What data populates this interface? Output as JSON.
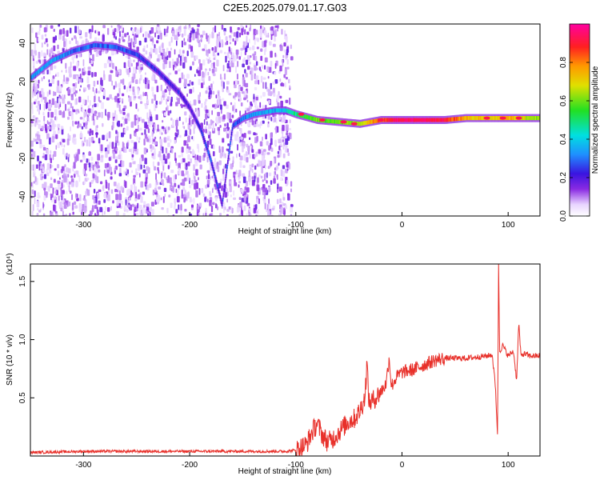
{
  "title": "C2E5.2025.079.01.17.G03",
  "chart_data": [
    {
      "type": "heatmap",
      "name": "spectrogram",
      "xlabel": "Height of straight line (km)",
      "ylabel": "Frequency (Hz)",
      "xlim": [
        -350,
        130
      ],
      "ylim": [
        -50,
        50
      ],
      "xticks": [
        -300,
        -200,
        -100,
        0,
        100
      ],
      "yticks": [
        -40,
        -20,
        0,
        20,
        40
      ],
      "colorbar": {
        "label": "Normalized spectral amplitude",
        "range": [
          0,
          1
        ],
        "ticks": [
          "0.0",
          "0.2",
          "0.4",
          "0.6",
          "0.8"
        ],
        "tick_values": [
          0.0,
          0.2,
          0.4,
          0.6,
          0.8
        ]
      },
      "noise_region_x": [
        -350,
        -105
      ],
      "ridge": {
        "x": [
          -350,
          -330,
          -310,
          -290,
          -270,
          -250,
          -230,
          -210,
          -200,
          -190,
          -180,
          -170,
          -160,
          -150,
          -140,
          -130,
          -120,
          -110,
          -100,
          -80,
          -60,
          -40,
          -20,
          0,
          20,
          40,
          60,
          80,
          100,
          130
        ],
        "y": [
          22,
          31,
          36,
          39,
          38,
          34,
          25,
          14,
          6,
          -5,
          -22,
          -44,
          -3,
          1,
          3,
          4,
          5,
          5,
          3,
          0,
          -1,
          -2,
          0,
          0,
          0,
          0,
          1,
          1,
          1,
          1
        ],
        "amplitude": [
          0.3,
          0.35,
          0.3,
          0.28,
          0.28,
          0.25,
          0.22,
          0.2,
          0.2,
          0.22,
          0.25,
          0.2,
          0.25,
          0.3,
          0.35,
          0.35,
          0.35,
          0.4,
          0.5,
          0.6,
          0.6,
          0.65,
          0.85,
          0.95,
          0.95,
          0.9,
          0.75,
          0.7,
          0.75,
          0.6
        ]
      }
    },
    {
      "type": "line",
      "name": "snr",
      "xlabel": "Height of straight line (km)",
      "ylabel": "SNR (10 * v/v)",
      "y_multiplier": "(x10⁴)",
      "xlim": [
        -350,
        130
      ],
      "ylim": [
        0,
        1.65
      ],
      "xticks": [
        -300,
        -200,
        -100,
        0,
        100
      ],
      "yticks": [
        0.5,
        1.0,
        1.5
      ],
      "ytick_labels": [
        "0.5",
        "1.0",
        "1.5"
      ],
      "color": "#e8302a",
      "x": [
        -350,
        -300,
        -250,
        -200,
        -150,
        -110,
        -100,
        -90,
        -85,
        -80,
        -75,
        -70,
        -65,
        -60,
        -55,
        -50,
        -45,
        -40,
        -35,
        -33,
        -31,
        -25,
        -20,
        -15,
        -12,
        -10,
        -5,
        0,
        10,
        20,
        30,
        40,
        50,
        60,
        70,
        80,
        85,
        88,
        90,
        91,
        92,
        95,
        100,
        105,
        108,
        110,
        112,
        115,
        120,
        125,
        130
      ],
      "y": [
        0.03,
        0.04,
        0.04,
        0.04,
        0.04,
        0.04,
        0.05,
        0.1,
        0.2,
        0.28,
        0.18,
        0.12,
        0.15,
        0.2,
        0.25,
        0.3,
        0.32,
        0.38,
        0.5,
        0.8,
        0.45,
        0.5,
        0.55,
        0.62,
        0.85,
        0.6,
        0.68,
        0.72,
        0.74,
        0.78,
        0.82,
        0.84,
        0.84,
        0.84,
        0.85,
        0.86,
        0.87,
        0.6,
        0.18,
        1.65,
        0.9,
        0.95,
        0.86,
        0.9,
        0.65,
        1.15,
        0.86,
        0.88,
        0.86,
        0.86,
        0.86
      ]
    }
  ]
}
